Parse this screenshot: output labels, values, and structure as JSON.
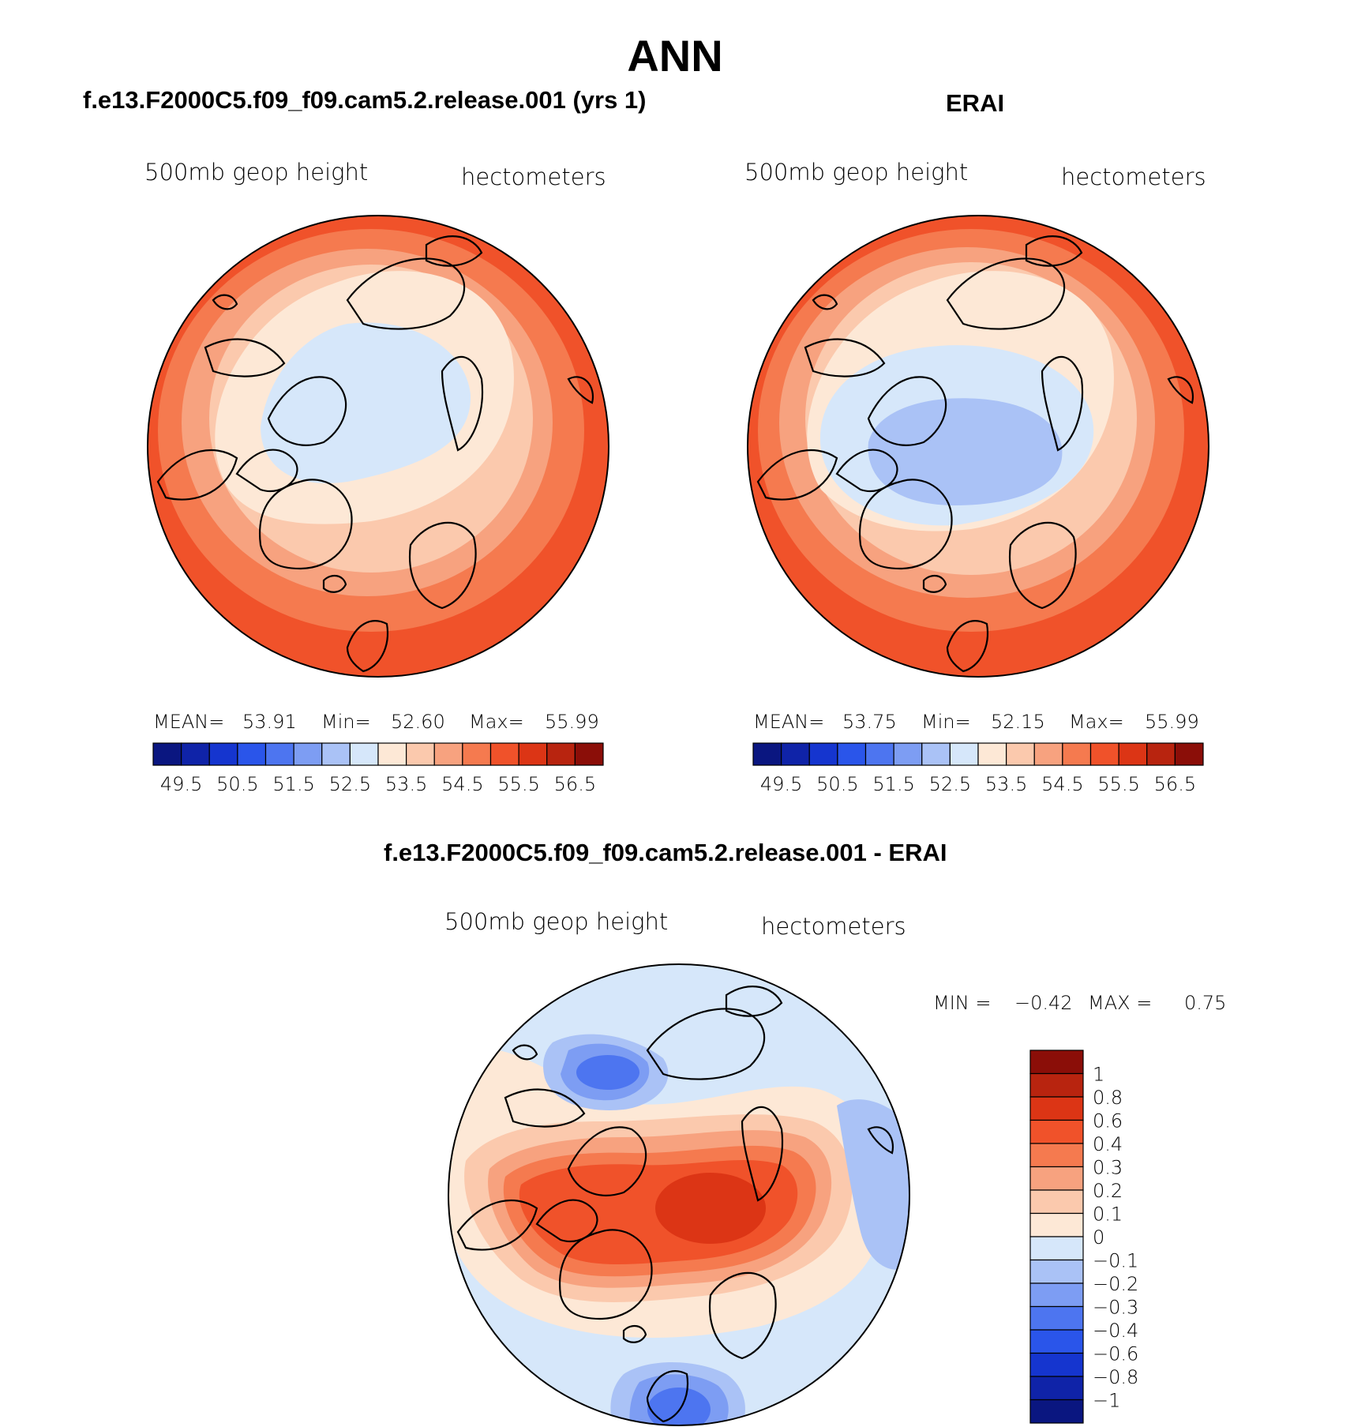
{
  "figure": {
    "title": "ANN",
    "diff_title": "f.e13.F2000C5.f09_f09.cam5.2.release.001 - ERAI"
  },
  "colors": {
    "abs_levels": [
      "#0a1680",
      "#0f23a8",
      "#1535cf",
      "#2a55ea",
      "#4d75f0",
      "#7d9df3",
      "#aac2f6",
      "#d6e7fa",
      "#fde8d6",
      "#fbc9ad",
      "#f7a27f",
      "#f57a4f",
      "#f0522a",
      "#dc3515",
      "#b8240f",
      "#8b0e08"
    ],
    "diff_levels": [
      "#0a1680",
      "#0f23a8",
      "#1535cf",
      "#2a55ea",
      "#4d75f0",
      "#7d9df3",
      "#aac2f6",
      "#d6e7fa",
      "#fde8d6",
      "#fbc9ad",
      "#f7a27f",
      "#f57a4f",
      "#f0522a",
      "#dc3515",
      "#b8240f",
      "#8b0e08"
    ]
  },
  "chart_data": [
    {
      "type": "polar-contour-map",
      "title": "f.e13.F2000C5.f09_f09.cam5.2.release.001 (yrs 1)",
      "left_label": "500mb geop height",
      "right_label": "hectometers",
      "stats": {
        "mean_label": "MEAN=",
        "mean": "53.91",
        "min_label": "Min=",
        "min": "52.60",
        "max_label": "Max=",
        "max": "55.99"
      },
      "colorbar_ticks": [
        "49.5",
        "50.5",
        "51.5",
        "52.5",
        "53.5",
        "54.5",
        "55.5",
        "56.5"
      ],
      "field_center_value": 52.6,
      "field_edge_value": 55.99
    },
    {
      "type": "polar-contour-map",
      "title": "ERAI",
      "left_label": "500mb geop height",
      "right_label": "hectometers",
      "stats": {
        "mean_label": "MEAN=",
        "mean": "53.75",
        "min_label": "Min=",
        "min": "52.15",
        "max_label": "Max=",
        "max": "55.99"
      },
      "colorbar_ticks": [
        "49.5",
        "50.5",
        "51.5",
        "52.5",
        "53.5",
        "54.5",
        "55.5",
        "56.5"
      ],
      "field_center_value": 52.15,
      "field_edge_value": 55.99
    },
    {
      "type": "polar-contour-map",
      "title": "f.e13.F2000C5.f09_f09.cam5.2.release.001 - ERAI",
      "left_label": "500mb geop height",
      "right_label": "hectometers",
      "stats": {
        "min_label": "MIN =",
        "min": "−0.42",
        "max_label": "MAX =",
        "max": "0.75"
      },
      "colorbar_ticks": [
        "1",
        "0.8",
        "0.6",
        "0.4",
        "0.3",
        "0.2",
        "0.1",
        "0",
        "−0.1",
        "−0.2",
        "−0.3",
        "−0.4",
        "−0.6",
        "−0.8",
        "−1"
      ]
    }
  ]
}
